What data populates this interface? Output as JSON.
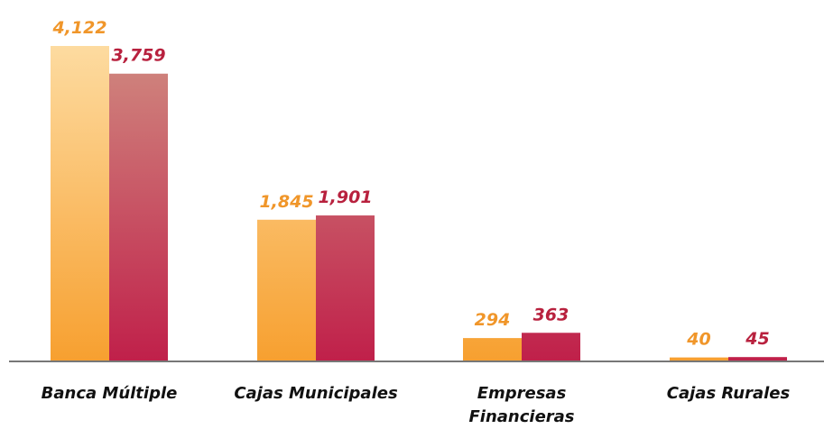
{
  "chart_data": {
    "type": "bar",
    "categories": [
      "Banca Múltiple",
      "Cajas Municipales",
      "Empresas Financieras",
      "Cajas Rurales"
    ],
    "series": [
      {
        "color": "#f7a030",
        "values": [
          4122,
          1845,
          294,
          40
        ],
        "value_labels": [
          "4,122",
          "1,845",
          "294",
          "40"
        ]
      },
      {
        "color": "#c0204a",
        "values": [
          3759,
          1901,
          363,
          45
        ],
        "value_labels": [
          "3,759",
          "1,901",
          "363",
          "45"
        ]
      }
    ]
  }
}
